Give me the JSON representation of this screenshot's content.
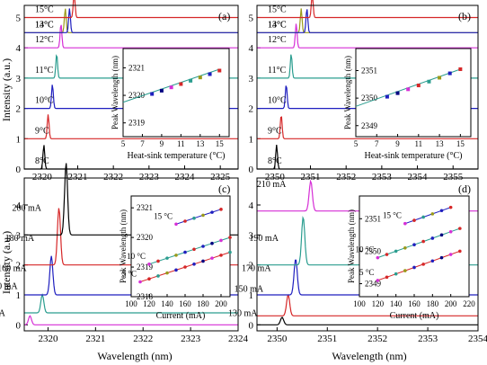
{
  "figure": {
    "ylabel_left": "Intensity (a.u.)",
    "xlabel_bottom": "Wavelength (nm)"
  },
  "chart_data": [
    {
      "type": "line",
      "panel": "(a)",
      "xlim": [
        2319.5,
        2325.5
      ],
      "xticks": [
        2320,
        2321,
        2322,
        2323,
        2324,
        2325
      ],
      "ylim": [
        0,
        5.4
      ],
      "yticks": [
        0,
        1,
        2,
        3,
        4,
        5
      ],
      "series": [
        {
          "name": "8°C",
          "offset": 0,
          "peak_x": 2320.05,
          "color": "#000000"
        },
        {
          "name": "9°C",
          "offset": 1,
          "peak_x": 2320.17,
          "color": "#d62728"
        },
        {
          "name": "10°C",
          "offset": 2,
          "peak_x": 2320.29,
          "color": "#1f1fbf"
        },
        {
          "name": "11°C",
          "offset": 3,
          "peak_x": 2320.41,
          "color": "#2a9d8f"
        },
        {
          "name": "12°C",
          "offset": 4,
          "peak_x": 2320.53,
          "color": "#d62fd6"
        },
        {
          "name": "13°C",
          "offset": 4.5,
          "peak_x": 2320.65,
          "color": "#9a9a1a"
        },
        {
          "name": "14°C",
          "offset": 4.5,
          "peak_x": 2320.77,
          "color": "#1f1fbf"
        },
        {
          "name": "15°C",
          "offset": 5,
          "peak_x": 2320.9,
          "color": "#d62728"
        }
      ],
      "inset": {
        "xlabel": "Heat-sink temperature (°C)",
        "ylabel": "Peak Wavelength (nm)",
        "xlim": [
          5,
          16
        ],
        "xticks": [
          5,
          7,
          9,
          11,
          13,
          15
        ],
        "ylim": [
          2318.5,
          2321.7
        ],
        "yticks": [
          2319,
          2320,
          2321
        ],
        "x": [
          8,
          9,
          10,
          11,
          12,
          13,
          14,
          15
        ],
        "y": [
          2320.05,
          2320.17,
          2320.29,
          2320.41,
          2320.53,
          2320.65,
          2320.77,
          2320.9
        ],
        "fit": [
          [
            5,
            2319.75
          ],
          [
            15,
            2320.95
          ]
        ]
      }
    },
    {
      "type": "line",
      "panel": "(b)",
      "xlim": [
        2349.5,
        2355.7
      ],
      "xticks": [
        2350,
        2351,
        2352,
        2353,
        2354,
        2355
      ],
      "ylim": [
        0,
        5.4
      ],
      "yticks": [
        0,
        1,
        2,
        3,
        4,
        5
      ],
      "series": [
        {
          "name": "8°C",
          "offset": 0,
          "peak_x": 2350.05,
          "color": "#000000"
        },
        {
          "name": "9°C",
          "offset": 1,
          "peak_x": 2350.18,
          "color": "#d62728"
        },
        {
          "name": "10°C",
          "offset": 2,
          "peak_x": 2350.32,
          "color": "#1f1fbf"
        },
        {
          "name": "11°C",
          "offset": 3,
          "peak_x": 2350.46,
          "color": "#2a9d8f"
        },
        {
          "name": "12°C",
          "offset": 4,
          "peak_x": 2350.6,
          "color": "#d62fd6"
        },
        {
          "name": "13°C",
          "offset": 4.5,
          "peak_x": 2350.74,
          "color": "#9a9a1a"
        },
        {
          "name": "14°C",
          "offset": 4.5,
          "peak_x": 2350.9,
          "color": "#1f1fbf"
        },
        {
          "name": "15°C",
          "offset": 5,
          "peak_x": 2351.05,
          "color": "#d62728"
        }
      ],
      "inset": {
        "xlabel": "Heat-sink temperature (°C)",
        "ylabel": "Peak Wavelength (nm)",
        "xlim": [
          5,
          16
        ],
        "xticks": [
          5,
          7,
          9,
          11,
          13,
          15
        ],
        "ylim": [
          2348.6,
          2351.8
        ],
        "yticks": [
          2349,
          2350,
          2351
        ],
        "x": [
          8,
          9,
          10,
          11,
          12,
          13,
          14,
          15
        ],
        "y": [
          2350.05,
          2350.18,
          2350.32,
          2350.46,
          2350.6,
          2350.74,
          2350.9,
          2351.05
        ],
        "fit": [
          [
            5,
            2349.7
          ],
          [
            15,
            2351.05
          ]
        ]
      }
    },
    {
      "type": "line",
      "panel": "(c)",
      "xlim": [
        2319.5,
        2324
      ],
      "xticks": [
        2320,
        2321,
        2322,
        2323,
        2324
      ],
      "ylim": [
        -0.2,
        4.9
      ],
      "yticks": [
        0,
        1,
        2,
        3,
        4
      ],
      "series": [
        {
          "name": "120 mA",
          "offset": 0,
          "peak_x": 2319.62,
          "amp": 0.3,
          "color": "#d62fd6"
        },
        {
          "name": "140 mA",
          "offset": 0.4,
          "peak_x": 2319.88,
          "amp": 0.6,
          "color": "#2a9d8f"
        },
        {
          "name": "160 mA",
          "offset": 1,
          "peak_x": 2320.07,
          "amp": 1.3,
          "color": "#1f1fbf"
        },
        {
          "name": "180 mA",
          "offset": 2,
          "peak_x": 2320.23,
          "amp": 1.9,
          "color": "#d62728"
        },
        {
          "name": "200 mA",
          "offset": 3,
          "peak_x": 2320.38,
          "amp": 2.4,
          "color": "#000000"
        }
      ],
      "inset": {
        "xlabel": "Current (mA)",
        "ylabel": "Peak Wavelength (nm)",
        "xlim": [
          100,
          210
        ],
        "xticks": [
          100,
          120,
          140,
          160,
          180,
          200
        ],
        "ylim": [
          2318,
          2321.4
        ],
        "yticks": [
          2318,
          2319,
          2320,
          2321
        ],
        "lines": [
          {
            "name": "5 °C",
            "x": [
              110,
              120,
              130,
              140,
              150,
              160,
              170,
              180,
              190,
              200,
              210
            ],
            "y": [
              2318.5,
              2318.6,
              2318.7,
              2318.8,
              2318.9,
              2319.0,
              2319.1,
              2319.2,
              2319.3,
              2319.4,
              2319.5
            ],
            "color": "#d62728"
          },
          {
            "name": "10 °C",
            "x": [
              120,
              130,
              140,
              150,
              160,
              170,
              180,
              190,
              200,
              210
            ],
            "y": [
              2319.1,
              2319.2,
              2319.3,
              2319.4,
              2319.5,
              2319.6,
              2319.7,
              2319.8,
              2319.9,
              2320.0
            ],
            "color": "#2a9d8f"
          },
          {
            "name": "15 °C",
            "x": [
              150,
              160,
              170,
              180,
              190,
              200
            ],
            "y": [
              2320.45,
              2320.55,
              2320.65,
              2320.75,
              2320.85,
              2320.95
            ],
            "color": "#1f1fbf"
          }
        ]
      }
    },
    {
      "type": "line",
      "panel": "(d)",
      "xlim": [
        2349.6,
        2354
      ],
      "xticks": [
        2350,
        2351,
        2352,
        2353,
        2354
      ],
      "ylim": [
        -0.2,
        4.9
      ],
      "yticks": [
        0,
        1,
        2,
        3,
        4
      ],
      "series": [
        {
          "name": "130 mA",
          "offset": 0,
          "peak_x": 2350.1,
          "amp": 0.25,
          "color": "#000000"
        },
        {
          "name": "150 mA",
          "offset": 0.3,
          "peak_x": 2350.22,
          "amp": 0.7,
          "color": "#d62728"
        },
        {
          "name": "170 mA",
          "offset": 1,
          "peak_x": 2350.37,
          "amp": 1.2,
          "color": "#1f1fbf"
        },
        {
          "name": "190 mA",
          "offset": 2,
          "peak_x": 2350.52,
          "amp": 1.6,
          "color": "#2a9d8f"
        },
        {
          "name": "210 mA",
          "offset": 3.8,
          "peak_x": 2350.67,
          "amp": 1.0,
          "color": "#d62fd6"
        }
      ],
      "inset": {
        "xlabel": "Current (mA)",
        "ylabel": "Peak Wavelength (nm)",
        "xlim": [
          100,
          220
        ],
        "xticks": [
          100,
          120,
          140,
          160,
          180,
          200,
          220
        ],
        "ylim": [
          2348.6,
          2351.7
        ],
        "yticks": [
          2349,
          2350,
          2351
        ],
        "lines": [
          {
            "name": "5 °C",
            "x": [
              120,
              130,
              140,
              150,
              160,
              170,
              180,
              190,
              200,
              210
            ],
            "y": [
              2349.1,
              2349.2,
              2349.3,
              2349.4,
              2349.5,
              2349.6,
              2349.7,
              2349.8,
              2349.9,
              2350.0
            ],
            "color": "#d62728"
          },
          {
            "name": "10 °C",
            "x": [
              120,
              130,
              140,
              150,
              160,
              170,
              180,
              190,
              200,
              210
            ],
            "y": [
              2349.8,
              2349.9,
              2350.0,
              2350.1,
              2350.2,
              2350.3,
              2350.4,
              2350.5,
              2350.6,
              2350.7
            ],
            "color": "#2a9d8f"
          },
          {
            "name": "15 °C",
            "x": [
              150,
              160,
              170,
              180,
              190,
              200
            ],
            "y": [
              2350.85,
              2350.95,
              2351.05,
              2351.15,
              2351.25,
              2351.35
            ],
            "color": "#1f1fbf"
          }
        ]
      }
    }
  ]
}
